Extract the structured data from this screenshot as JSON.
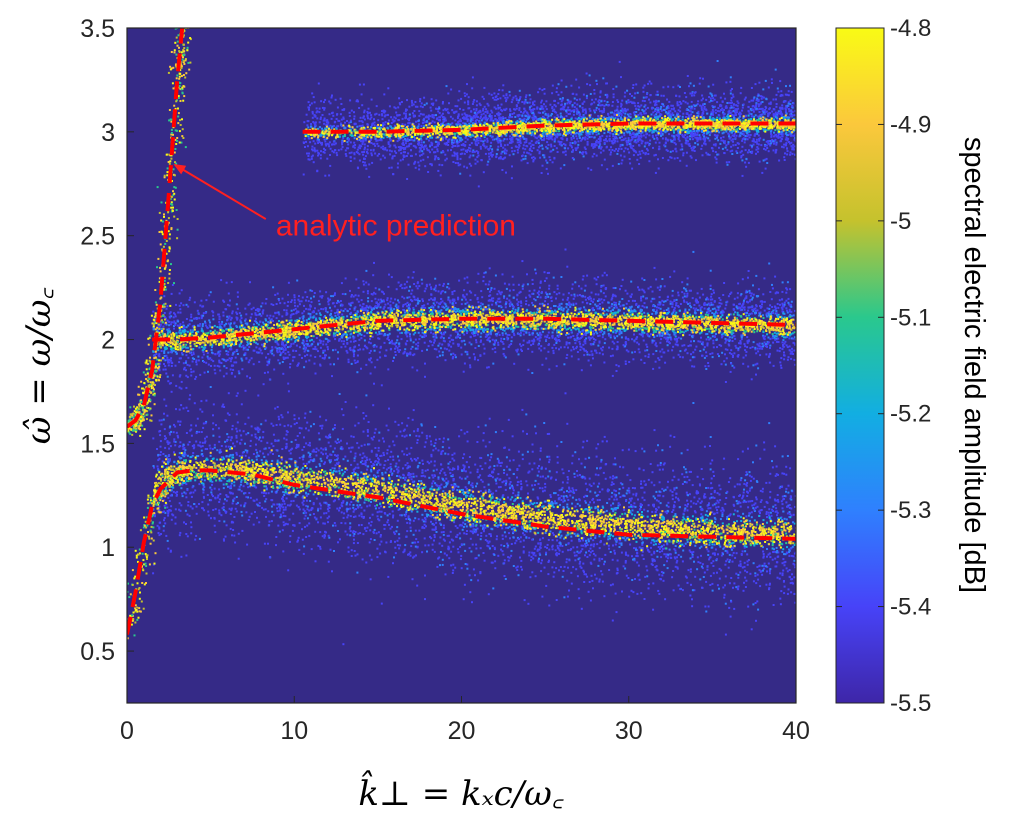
{
  "chart_data": {
    "type": "heatmap",
    "xlabel": "k̂⊥ = kₓc/ω꜀",
    "ylabel": "ω̂ = ω/ω꜀",
    "xlim": [
      0,
      40
    ],
    "ylim": [
      0.25,
      3.5
    ],
    "x_ticks": [
      "0",
      "10",
      "20",
      "30",
      "40"
    ],
    "y_ticks": [
      "0.5",
      "1",
      "1.5",
      "2",
      "2.5",
      "3",
      "3.5"
    ],
    "colorbar": {
      "label": "spectral electric field amplitude [dB]",
      "range": [
        -5.5,
        -4.8
      ],
      "ticks": [
        "-4.8",
        "-4.9",
        "-5",
        "-5.1",
        "-5.2",
        "-5.3",
        "-5.4",
        "-5.5"
      ],
      "colormap": "parula",
      "colors": [
        "#3e26a8",
        "#4743f8",
        "#2f80fe",
        "#12aee2",
        "#2ac88d",
        "#c5c22d",
        "#fbc83c",
        "#f9fb15"
      ]
    },
    "background_color": "#352a87",
    "series": [
      {
        "style": "dashed",
        "color": "#ff0000",
        "branches": [
          {
            "x": [
              0,
              0.5,
              1,
              1.5,
              2,
              2.5,
              3,
              3.3
            ],
            "y": [
              1.58,
              1.61,
              1.68,
              1.85,
              2.18,
              2.7,
              3.25,
              3.5
            ]
          },
          {
            "x": [
              1.5,
              3,
              5,
              10,
              15,
              20,
              25,
              30,
              35,
              40
            ],
            "y": [
              2.0,
              2.0,
              2.01,
              2.05,
              2.09,
              2.1,
              2.1,
              2.09,
              2.08,
              2.07
            ]
          },
          {
            "x": [
              10.5,
              15,
              20,
              25,
              30,
              35,
              40
            ],
            "y": [
              3.0,
              3.0,
              3.01,
              3.03,
              3.04,
              3.04,
              3.04
            ]
          },
          {
            "x": [
              0,
              0.5,
              1,
              1.5,
              2,
              3,
              4,
              5,
              7.5,
              10,
              15,
              20,
              25,
              30,
              35,
              40
            ],
            "y": [
              0.58,
              0.78,
              1.02,
              1.2,
              1.28,
              1.36,
              1.37,
              1.37,
              1.35,
              1.3,
              1.24,
              1.16,
              1.1,
              1.06,
              1.05,
              1.04
            ]
          }
        ]
      }
    ],
    "bands": [
      {
        "x": [
          1.5,
          3,
          5,
          10,
          15,
          20,
          25,
          30,
          35,
          40
        ],
        "y": [
          2.0,
          2.0,
          2.01,
          2.05,
          2.09,
          2.1,
          2.1,
          2.09,
          2.08,
          2.07
        ],
        "halfwidth": 0.03,
        "spread": 0.09,
        "fade": 0.05
      },
      {
        "x": [
          10.5,
          15,
          20,
          25,
          30,
          35,
          40
        ],
        "y": [
          3.0,
          3.0,
          3.01,
          3.03,
          3.04,
          3.04,
          3.04
        ],
        "halfwidth": 0.02,
        "spread": 0.08,
        "fade": 0.45
      },
      {
        "x": [
          1.5,
          2,
          3,
          4,
          5,
          7.5,
          10,
          15,
          20,
          25,
          30,
          35,
          40
        ],
        "y": [
          1.28,
          1.33,
          1.37,
          1.38,
          1.38,
          1.37,
          1.34,
          1.28,
          1.2,
          1.15,
          1.11,
          1.08,
          1.07
        ],
        "halfwidth": 0.04,
        "spread": 0.16,
        "fade": 0.1
      }
    ],
    "annotation": {
      "text": "analytic prediction",
      "color": "#ff2020",
      "arrow_to": {
        "x": 2.7,
        "y": 2.85
      },
      "arrow_from": {
        "x": 8.3,
        "y": 2.58
      },
      "text_at": {
        "x": 8.9,
        "y": 2.5
      }
    }
  }
}
